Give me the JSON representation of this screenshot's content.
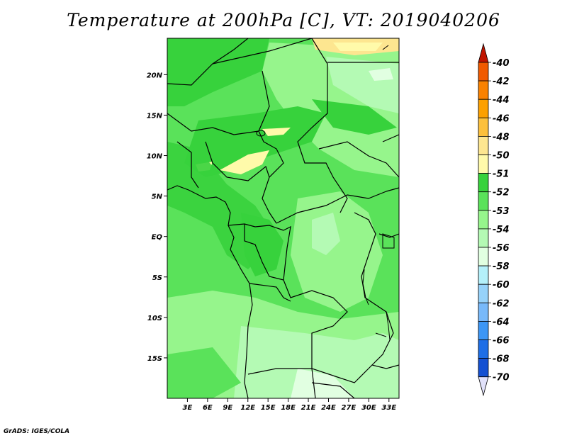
{
  "title": "Temperature at 200hPa [C], VT: 2019040206",
  "credit": "GrADS: IGES/COLA",
  "map": {
    "lon_range": [
      0,
      34.5
    ],
    "lat_range": [
      -20,
      24.5
    ],
    "lon_ticks": [
      {
        "value": 3,
        "label": "3E"
      },
      {
        "value": 6,
        "label": "6E"
      },
      {
        "value": 9,
        "label": "9E"
      },
      {
        "value": 12,
        "label": "12E"
      },
      {
        "value": 15,
        "label": "15E"
      },
      {
        "value": 18,
        "label": "18E"
      },
      {
        "value": 21,
        "label": "21E"
      },
      {
        "value": 24,
        "label": "24E"
      },
      {
        "value": 27,
        "label": "27E"
      },
      {
        "value": 30,
        "label": "30E"
      },
      {
        "value": 33,
        "label": "33E"
      }
    ],
    "lat_ticks": [
      {
        "value": 20,
        "label": "20N"
      },
      {
        "value": 15,
        "label": "15N"
      },
      {
        "value": 10,
        "label": "10N"
      },
      {
        "value": 5,
        "label": "5N"
      },
      {
        "value": 0,
        "label": "EQ"
      },
      {
        "value": -5,
        "label": "5S"
      },
      {
        "value": -10,
        "label": "10S"
      },
      {
        "value": -15,
        "label": "15S"
      }
    ]
  },
  "colorbar": {
    "levels": [
      {
        "label": "-40",
        "color": "#e03200"
      },
      {
        "label": "-42",
        "color": "#f05a00"
      },
      {
        "label": "-44",
        "color": "#fa8200"
      },
      {
        "label": "-46",
        "color": "#fca000"
      },
      {
        "label": "-48",
        "color": "#fcc03c"
      },
      {
        "label": "-50",
        "color": "#fde690"
      },
      {
        "label": "-51",
        "color": "#fffaaa"
      },
      {
        "label": "-52",
        "color": "#37d23c"
      },
      {
        "label": "-53",
        "color": "#5ae25a"
      },
      {
        "label": "-54",
        "color": "#96f58c"
      },
      {
        "label": "-56",
        "color": "#b4fab4"
      },
      {
        "label": "-58",
        "color": "#e1ffe1"
      },
      {
        "label": "-60",
        "color": "#b4f0fa"
      },
      {
        "label": "-62",
        "color": "#96d2fa"
      },
      {
        "label": "-64",
        "color": "#78b9fa"
      },
      {
        "label": "-66",
        "color": "#3c96f5"
      },
      {
        "label": "-68",
        "color": "#1e6ee6"
      },
      {
        "label": "-70",
        "color": "#1450d2"
      }
    ],
    "top_color": "#c01400",
    "bottom_color": "#e1e1fa",
    "extra_colors": [
      "#0f3cb4",
      "#0a1e78"
    ]
  },
  "field_colors": {
    "dark_green": "#37d23c",
    "mid_green": "#5ae25a",
    "light_green": "#96f58c",
    "pale_green": "#b4fab4",
    "very_pale": "#e1ffe1",
    "yellow": "#fffaaa",
    "border": "#000000"
  }
}
